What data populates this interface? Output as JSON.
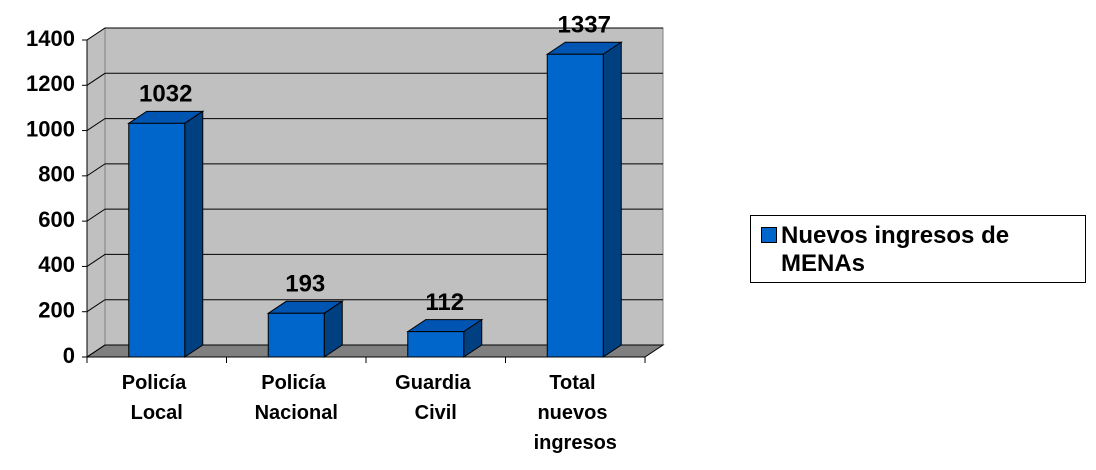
{
  "chart_data": {
    "type": "bar3d",
    "categories": [
      "Policía Local",
      "Policía Nacional",
      "Guardia Civil",
      "Total nuevos ingresos"
    ],
    "series": [
      {
        "name": "Nuevos ingresos de MENAs",
        "color": "#0066cc",
        "values": [
          1032,
          193,
          112,
          1337
        ]
      }
    ],
    "ylim": [
      0,
      1400
    ],
    "yticks": [
      0,
      200,
      400,
      600,
      800,
      1000,
      1200,
      1400
    ],
    "grid": true,
    "legend": "right"
  }
}
